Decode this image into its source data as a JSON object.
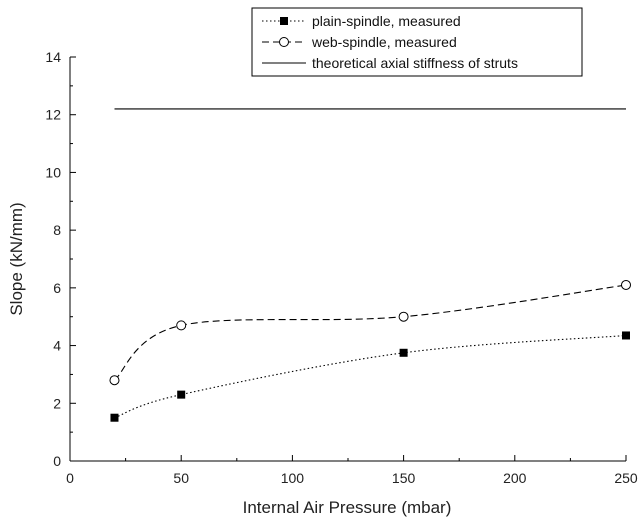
{
  "chart_data": {
    "type": "line",
    "title": "",
    "xlabel": "Internal Air Pressure (mbar)",
    "ylabel": "Slope (kN/mm)",
    "xlim": [
      0,
      250
    ],
    "ylim": [
      0,
      14
    ],
    "xticks": [
      "0",
      "50",
      "100",
      "150",
      "200",
      "250"
    ],
    "yticks": [
      "0",
      "2",
      "4",
      "6",
      "8",
      "10",
      "12",
      "14"
    ],
    "grid": false,
    "legend_position": "top-right",
    "series": [
      {
        "name": "plain-spindle, measured",
        "marker": "filled-square",
        "line_style": "dotted",
        "color": "#000000",
        "x": [
          20,
          50,
          150,
          250
        ],
        "y": [
          1.5,
          2.3,
          3.75,
          4.35
        ]
      },
      {
        "name": "web-spindle, measured",
        "marker": "open-circle",
        "line_style": "dashed",
        "color": "#000000",
        "x": [
          20,
          50,
          150,
          250
        ],
        "y": [
          2.8,
          4.7,
          5.0,
          6.1
        ]
      },
      {
        "name": "theoretical axial stiffness of struts",
        "marker": "none",
        "line_style": "solid",
        "color": "#000000",
        "x": [
          20,
          250
        ],
        "y": [
          12.2,
          12.2
        ]
      }
    ]
  }
}
